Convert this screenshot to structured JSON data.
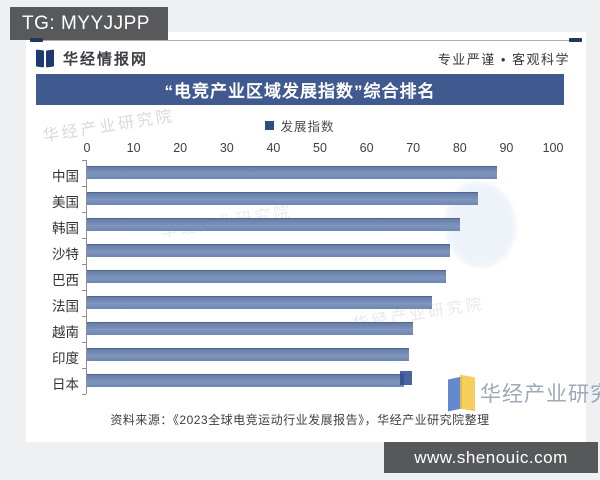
{
  "page": {
    "tg_badge": "TG: MYYJJPP",
    "site_badge": "www.shenouic.com"
  },
  "header": {
    "logo_text": "华经情报网",
    "slogan": "专业严谨 • 客观科学"
  },
  "banner": {
    "title": "“电竞产业区域发展指数”综合排名"
  },
  "legend": {
    "label": "发展指数",
    "marker_color": "#2f4d7d"
  },
  "chart_data": {
    "type": "bar",
    "orientation": "horizontal",
    "title": "“电竞产业区域发展指数”综合排名",
    "legend_entries": [
      "发展指数"
    ],
    "categories": [
      "中国",
      "美国",
      "韩国",
      "沙特",
      "巴西",
      "法国",
      "越南",
      "印度",
      "日本"
    ],
    "values": [
      88,
      84,
      80,
      78,
      77,
      74,
      70,
      69,
      68
    ],
    "xlim": [
      0,
      100
    ],
    "x_ticks": [
      0,
      10,
      20,
      30,
      40,
      50,
      60,
      70,
      80,
      90,
      100
    ],
    "axis_position": "top",
    "grid": false,
    "bar_color": "#6d87b2",
    "xlabel": "",
    "ylabel": ""
  },
  "watermarks": {
    "wm1": "华经产业研究院",
    "wm2": "华经产业研究院",
    "wm3": "华经产业研究院",
    "footer_logo_text": "华经产业研究院"
  },
  "source": {
    "text": "资料来源：《2023全球电竞运动行业发展报告》，华经产业研究院整理"
  },
  "colors": {
    "banner": "#40598f",
    "bar": "#6d87b2",
    "badge": "#58595b"
  }
}
